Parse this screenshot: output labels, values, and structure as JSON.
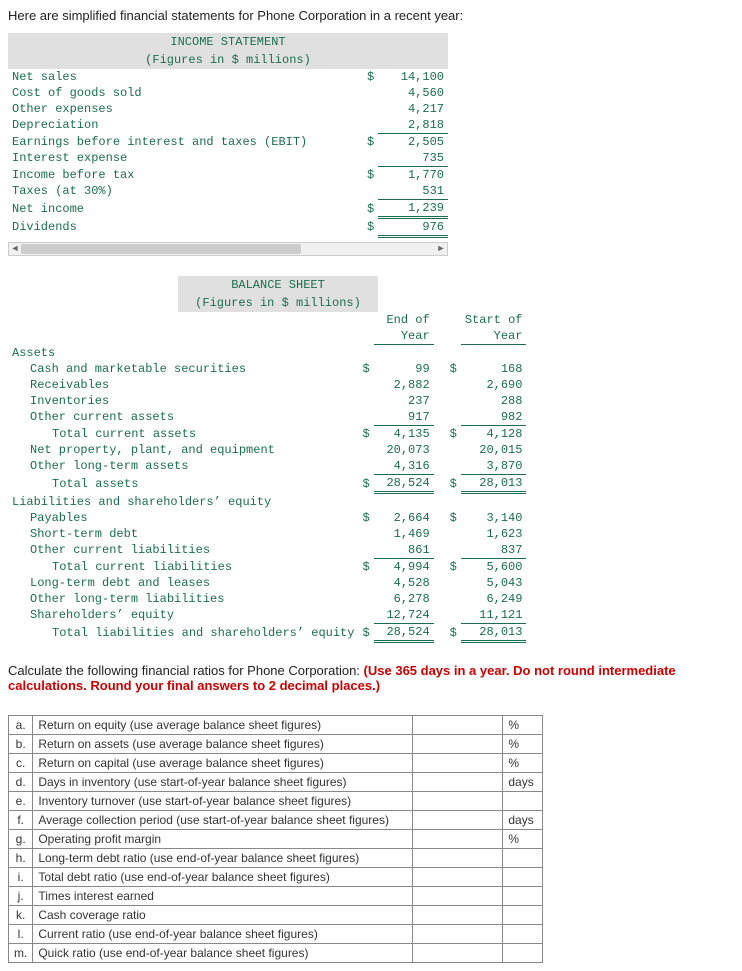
{
  "intro": "Here are simplified financial statements for Phone Corporation in a recent year:",
  "income_statement": {
    "title1": "INCOME STATEMENT",
    "title2": "(Figures in $ millions)",
    "rows": [
      {
        "label": "Net sales",
        "cur": "$",
        "val": "14,100"
      },
      {
        "label": "Cost of goods sold",
        "cur": "",
        "val": "4,560"
      },
      {
        "label": "Other expenses",
        "cur": "",
        "val": "4,217"
      },
      {
        "label": "Depreciation",
        "cur": "",
        "val": "2,818",
        "uline": true
      },
      {
        "label": "Earnings before interest and taxes (EBIT)",
        "cur": "$",
        "val": "2,505"
      },
      {
        "label": "Interest expense",
        "cur": "",
        "val": "735",
        "uline": true
      },
      {
        "label": "Income before tax",
        "cur": "$",
        "val": "1,770"
      },
      {
        "label": "Taxes (at 30%)",
        "cur": "",
        "val": "531",
        "uline": true
      },
      {
        "label": "Net income",
        "cur": "$",
        "val": "1,239",
        "udbl": true
      },
      {
        "label": "Dividends",
        "cur": "$",
        "val": "976",
        "udbl": true
      }
    ]
  },
  "balance_sheet": {
    "title1": "BALANCE SHEET",
    "title2": "(Figures in $ millions)",
    "col1": "End of",
    "col1b": "Year",
    "col2": "Start of",
    "col2b": "Year",
    "sections": {
      "assets_head": "Assets",
      "assets": [
        {
          "label": "Cash and marketable securities",
          "indent": 1,
          "c1": "$",
          "v1": "99",
          "c2": "$",
          "v2": "168"
        },
        {
          "label": "Receivables",
          "indent": 1,
          "c1": "",
          "v1": "2,882",
          "c2": "",
          "v2": "2,690"
        },
        {
          "label": "Inventories",
          "indent": 1,
          "c1": "",
          "v1": "237",
          "c2": "",
          "v2": "288"
        },
        {
          "label": "Other current assets",
          "indent": 1,
          "c1": "",
          "v1": "917",
          "c2": "",
          "v2": "982",
          "uline": true
        },
        {
          "label": "Total current assets",
          "indent": 2,
          "c1": "$",
          "v1": "4,135",
          "c2": "$",
          "v2": "4,128"
        },
        {
          "label": "Net property, plant, and equipment",
          "indent": 1,
          "c1": "",
          "v1": "20,073",
          "c2": "",
          "v2": "20,015"
        },
        {
          "label": "Other long-term assets",
          "indent": 1,
          "c1": "",
          "v1": "4,316",
          "c2": "",
          "v2": "3,870",
          "uline": true
        },
        {
          "label": "Total assets",
          "indent": 2,
          "c1": "$",
          "v1": "28,524",
          "c2": "$",
          "v2": "28,013",
          "udbl": true
        }
      ],
      "liab_head": "Liabilities and shareholders’ equity",
      "liab": [
        {
          "label": "Payables",
          "indent": 1,
          "c1": "$",
          "v1": "2,664",
          "c2": "$",
          "v2": "3,140"
        },
        {
          "label": "Short-term debt",
          "indent": 1,
          "c1": "",
          "v1": "1,469",
          "c2": "",
          "v2": "1,623"
        },
        {
          "label": "Other current liabilities",
          "indent": 1,
          "c1": "",
          "v1": "861",
          "c2": "",
          "v2": "837",
          "uline": true
        },
        {
          "label": "Total current liabilities",
          "indent": 2,
          "c1": "$",
          "v1": "4,994",
          "c2": "$",
          "v2": "5,600"
        },
        {
          "label": "Long-term debt and leases",
          "indent": 1,
          "c1": "",
          "v1": "4,528",
          "c2": "",
          "v2": "5,043"
        },
        {
          "label": "Other long-term liabilities",
          "indent": 1,
          "c1": "",
          "v1": "6,278",
          "c2": "",
          "v2": "6,249"
        },
        {
          "label": "Shareholders’ equity",
          "indent": 1,
          "c1": "",
          "v1": "12,724",
          "c2": "",
          "v2": "11,121",
          "uline": true
        },
        {
          "label": "Total liabilities and shareholders’ equity",
          "indent": 2,
          "c1": "$",
          "v1": "28,524",
          "c2": "$",
          "v2": "28,013",
          "udbl": true
        }
      ]
    }
  },
  "calc_prompt": {
    "plain": "Calculate the following financial ratios for Phone Corporation: ",
    "red": "(Use 365 days in a year. Do not round intermediate calculations. Round your final answers to 2 decimal places.)"
  },
  "ratios": [
    {
      "letter": "a.",
      "desc": "Return on equity (use average balance sheet figures)",
      "unit": "%"
    },
    {
      "letter": "b.",
      "desc": "Return on assets (use average balance sheet figures)",
      "unit": "%"
    },
    {
      "letter": "c.",
      "desc": "Return on capital (use average balance sheet figures)",
      "unit": "%"
    },
    {
      "letter": "d.",
      "desc": "Days in inventory (use start-of-year balance sheet figures)",
      "unit": "days"
    },
    {
      "letter": "e.",
      "desc": "Inventory turnover (use start-of-year balance sheet figures)",
      "unit": ""
    },
    {
      "letter": "f.",
      "desc": "Average collection period (use start-of-year balance sheet figures)",
      "unit": "days"
    },
    {
      "letter": "g.",
      "desc": "Operating profit margin",
      "unit": "%"
    },
    {
      "letter": "h.",
      "desc": "Long-term debt ratio (use end-of-year balance sheet figures)",
      "unit": ""
    },
    {
      "letter": "i.",
      "desc": "Total debt ratio (use end-of-year balance sheet figures)",
      "unit": ""
    },
    {
      "letter": "j.",
      "desc": "Times interest earned",
      "unit": ""
    },
    {
      "letter": "k.",
      "desc": "Cash coverage ratio",
      "unit": ""
    },
    {
      "letter": "l.",
      "desc": "Current ratio (use end-of-year balance sheet figures)",
      "unit": ""
    },
    {
      "letter": "m.",
      "desc": "Quick ratio (use end-of-year balance sheet figures)",
      "unit": ""
    }
  ]
}
